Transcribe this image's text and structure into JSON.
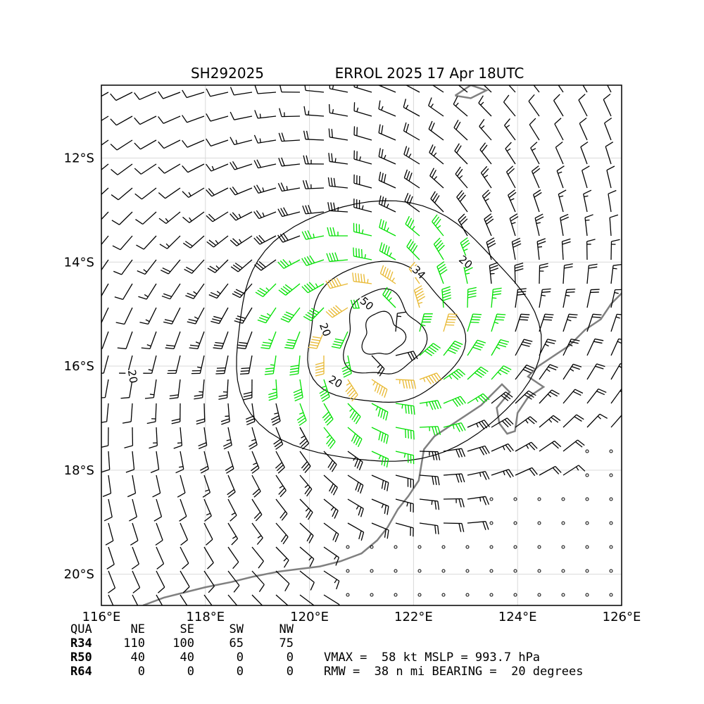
{
  "title": {
    "storm_id": "SH292025",
    "storm_name_time": "ERROL 2025 17 Apr 18UTC"
  },
  "map": {
    "lon_range": [
      116,
      126
    ],
    "lat_range": [
      -20.6,
      -10.6
    ],
    "x_ticks": [
      {
        "value": 116,
        "label": "116°E"
      },
      {
        "value": 118,
        "label": "118°E"
      },
      {
        "value": 120,
        "label": "120°E"
      },
      {
        "value": 122,
        "label": "122°E"
      },
      {
        "value": 124,
        "label": "124°E"
      },
      {
        "value": 126,
        "label": "126°E"
      }
    ],
    "y_ticks": [
      {
        "value": -12,
        "label": "12°S"
      },
      {
        "value": -14,
        "label": "14°S"
      },
      {
        "value": -16,
        "label": "16°S"
      },
      {
        "value": -18,
        "label": "18°S"
      },
      {
        "value": -20,
        "label": "20°S"
      }
    ],
    "grid": true,
    "storm_center": {
      "lon": 121.4,
      "lat": -15.4
    },
    "colors": {
      "wind_barb_default": "#000000",
      "wind_barb_34kt": "#00e000",
      "wind_barb_50kt": "#e8b830",
      "coastline": "#808080",
      "contour": "#000000",
      "grid": "#d9d9d9"
    },
    "contour_labels": [
      {
        "text": "20",
        "lon": 123.0,
        "lat": -14.0,
        "rot": 40
      },
      {
        "text": "34",
        "lon": 122.1,
        "lat": -14.2,
        "rot": 45
      },
      {
        "text": "50",
        "lon": 121.1,
        "lat": -14.8,
        "rot": 40
      },
      {
        "text": "20",
        "lon": 120.3,
        "lat": -15.3,
        "rot": 70
      },
      {
        "text": "20",
        "lon": 120.5,
        "lat": -16.3,
        "rot": 30
      },
      {
        "text": "20",
        "lon": 116.6,
        "lat": -16.2,
        "rot": 80
      }
    ]
  },
  "wind_radii_table": {
    "headers": [
      "QUA",
      "NE",
      "SE",
      "SW",
      "NW"
    ],
    "rows": [
      {
        "label": "R34",
        "values": [
          "110",
          "100",
          "65",
          "75"
        ]
      },
      {
        "label": "R50",
        "values": [
          "40",
          "40",
          "0",
          "0"
        ]
      },
      {
        "label": "R64",
        "values": [
          "0",
          "0",
          "0",
          "0"
        ]
      }
    ]
  },
  "stats": {
    "line1": "VMAX =  58 kt MSLP = 993.7 hPa",
    "line2": "RMW =  38 n mi BEARING =  20 degrees"
  }
}
